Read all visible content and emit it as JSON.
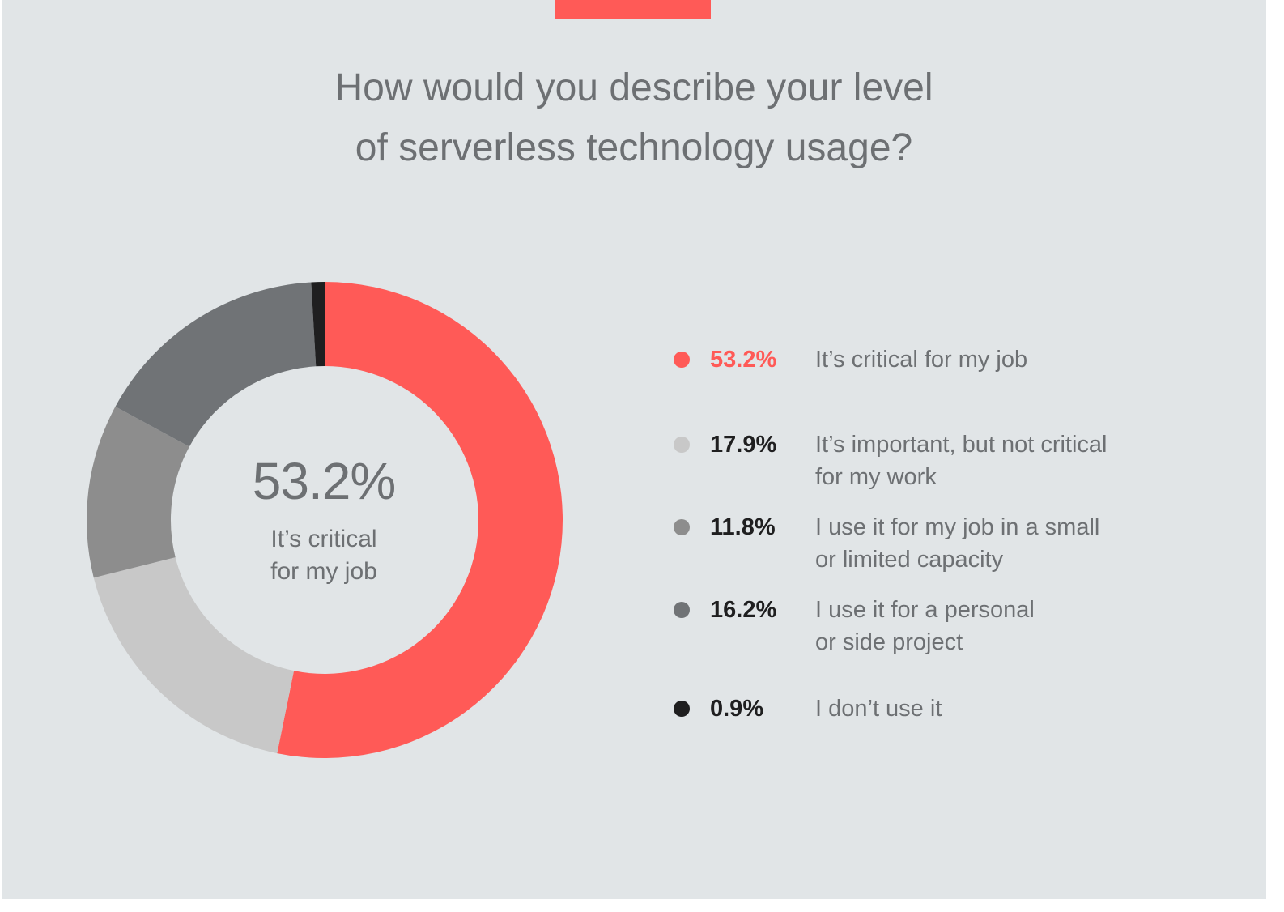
{
  "chart_data": {
    "type": "pie",
    "style": "donut",
    "title": "How would you describe your level of serverless technology usage?",
    "title_lines": [
      "How would you describe your level",
      "of serverless technology usage?"
    ],
    "center": {
      "value": "53.2%",
      "label_lines": [
        "It’s critical",
        "for my job"
      ]
    },
    "legend_position": "right",
    "slices": [
      {
        "label": "It’s critical for my job",
        "label_lines": [
          "It’s critical for my job"
        ],
        "value": 53.2,
        "value_label": "53.2%",
        "color": "#ff5a57",
        "pct_color": "#ff5a57"
      },
      {
        "label": "It’s important, but not critical for my work",
        "label_lines": [
          "It’s important, but not critical",
          "for my work"
        ],
        "value": 17.9,
        "value_label": "17.9%",
        "color": "#c8c8c8",
        "pct_color": "#1f1f20"
      },
      {
        "label": "I use it for my job in a small or limited capacity",
        "label_lines": [
          "I use it for my job in a small",
          "or limited capacity"
        ],
        "value": 11.8,
        "value_label": "11.8%",
        "color": "#8d8d8d",
        "pct_color": "#1f1f20"
      },
      {
        "label": "I use it for a personal or side project",
        "label_lines": [
          "I use it for a personal",
          "or side project"
        ],
        "value": 16.2,
        "value_label": "16.2%",
        "color": "#707376",
        "pct_color": "#1f1f20"
      },
      {
        "label": "I don’t use it",
        "label_lines": [
          "I don’t use it"
        ],
        "value": 0.9,
        "value_label": "0.9%",
        "color": "#1f1f20",
        "pct_color": "#1f1f20"
      }
    ]
  },
  "colors": {
    "background": "#e1e5e7",
    "accent": "#ff5a57",
    "text": "#6d7073"
  }
}
